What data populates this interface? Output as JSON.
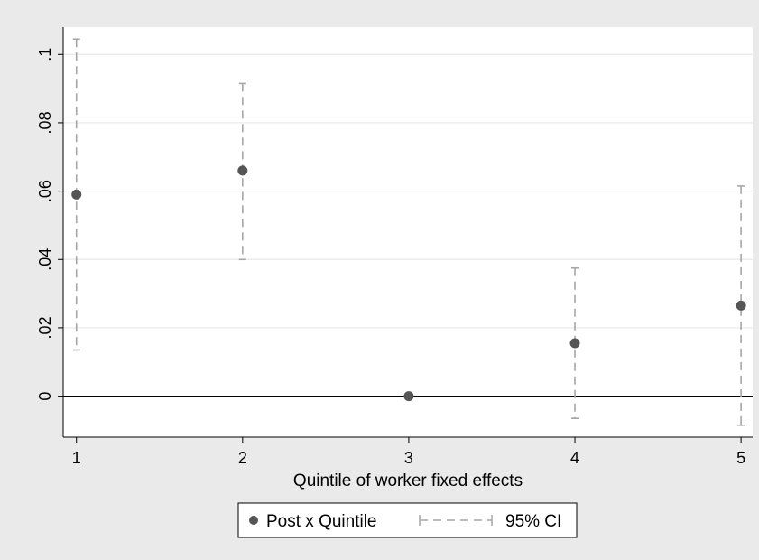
{
  "chart_data": {
    "type": "scatter",
    "title": "",
    "xlabel": "Quintile of worker fixed effects",
    "ylabel": "",
    "x_ticks": [
      "1",
      "2",
      "3",
      "4",
      "5"
    ],
    "y_ticks": [
      ".1",
      ".08",
      ".06",
      ".04",
      ".02",
      "0"
    ],
    "xlim": [
      0.92,
      5.07
    ],
    "ylim": [
      -0.012,
      0.108
    ],
    "reference_line_y": 0,
    "grid": "horizontal",
    "legend_position": "bottom",
    "series": [
      {
        "name": "Post x Quintile",
        "marker": "circle",
        "color": "#555555",
        "x": [
          1,
          2,
          3,
          4,
          5
        ],
        "y": [
          0.059,
          0.066,
          0.0,
          0.0155,
          0.0265
        ]
      },
      {
        "name": "95% CI",
        "style": "dashed-capped",
        "color": "#a6a6a6",
        "x": [
          1,
          2,
          4,
          5
        ],
        "lower": [
          0.0135,
          0.04,
          -0.0065,
          -0.0085
        ],
        "upper": [
          0.1045,
          0.0915,
          0.0375,
          0.0615
        ]
      }
    ],
    "colors": {
      "background": "#eaeaea",
      "plot_area": "#ffffff",
      "gridline": "#e8e8e8",
      "marker": "#555555",
      "ci": "#a6a6a6",
      "axis": "#000000"
    }
  }
}
